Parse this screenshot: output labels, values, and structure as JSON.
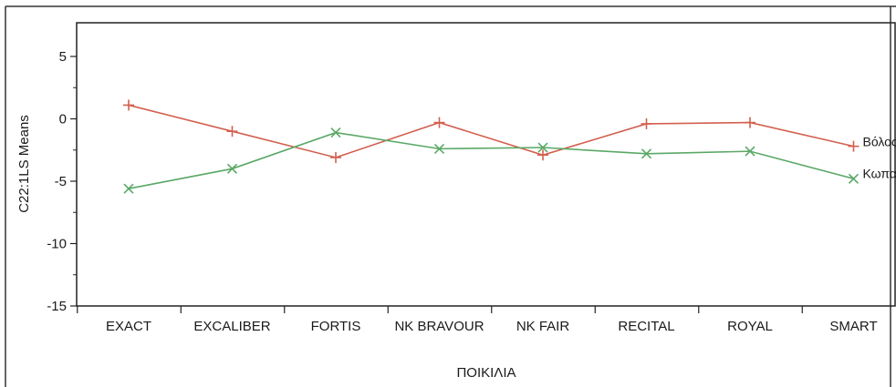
{
  "chart_data": {
    "type": "line",
    "title": "",
    "xlabel": "ΠΟΙΚΙΛΙΑ",
    "ylabel": "C22:1LS Means",
    "categories": [
      "EXACT",
      "EXCALIBER",
      "FORTIS",
      "NK BRAVOUR",
      "NK FAIR",
      "RECITAL",
      "ROYAL",
      "SMART"
    ],
    "ylim": [
      -15,
      7.5
    ],
    "yticks": [
      -15,
      -10,
      -5,
      0,
      5
    ],
    "grid": false,
    "legend": "inline labels at right end of lines",
    "series": [
      {
        "name": "Βόλος",
        "marker": "+",
        "color": "#d2604f",
        "values": [
          1.1,
          -1.0,
          -3.1,
          -0.3,
          -2.9,
          -0.4,
          -0.3,
          -2.2
        ]
      },
      {
        "name": "Κωπαΐδα",
        "marker": "x",
        "color": "#5aa866",
        "values": [
          -5.6,
          -4.0,
          -1.1,
          -2.4,
          -2.3,
          -2.8,
          -2.6,
          -4.8
        ]
      }
    ]
  }
}
